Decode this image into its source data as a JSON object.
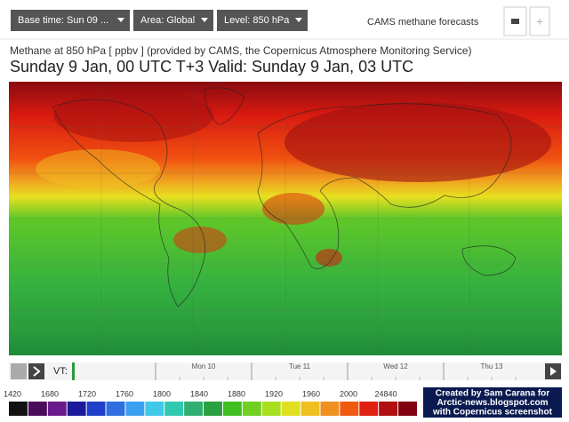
{
  "toolbar": {
    "base_time": "Base time: Sun 09 ...",
    "area": "Area: Global",
    "level": "Level: 850 hPa",
    "product": "CAMS methane forecasts",
    "add": "+"
  },
  "header": {
    "subtitle": "Methane at 850 hPa [ ppbv ] (provided by CAMS, the Copernicus Atmosphere Monitoring Service)",
    "title": "Sunday 9 Jan, 00 UTC T+3 Valid: Sunday 9 Jan, 03 UTC"
  },
  "timeline": {
    "label": "VT:",
    "days": [
      "Mon 10",
      "Tue 11",
      "Wed 12",
      "Thu 13"
    ]
  },
  "legend": {
    "labels": [
      "1420",
      "1680",
      "1720",
      "1760",
      "1800",
      "1840",
      "1880",
      "1920",
      "1960",
      "2000",
      "24840"
    ],
    "colors": [
      "#111111",
      "#4b0a5a",
      "#6a1a8a",
      "#1a1a9a",
      "#1f3fc8",
      "#2f6fe0",
      "#3aa0f0",
      "#40c8e8",
      "#30c8b0",
      "#30b070",
      "#2aa040",
      "#40c020",
      "#70d020",
      "#a8e020",
      "#e0e020",
      "#f0c020",
      "#f09020",
      "#f05a10",
      "#e02010",
      "#b01010",
      "#800010"
    ]
  },
  "credit": [
    "Created by Sam Carana for",
    "Arctic-news.blogspot.com",
    "with Copernicus screenshot"
  ]
}
